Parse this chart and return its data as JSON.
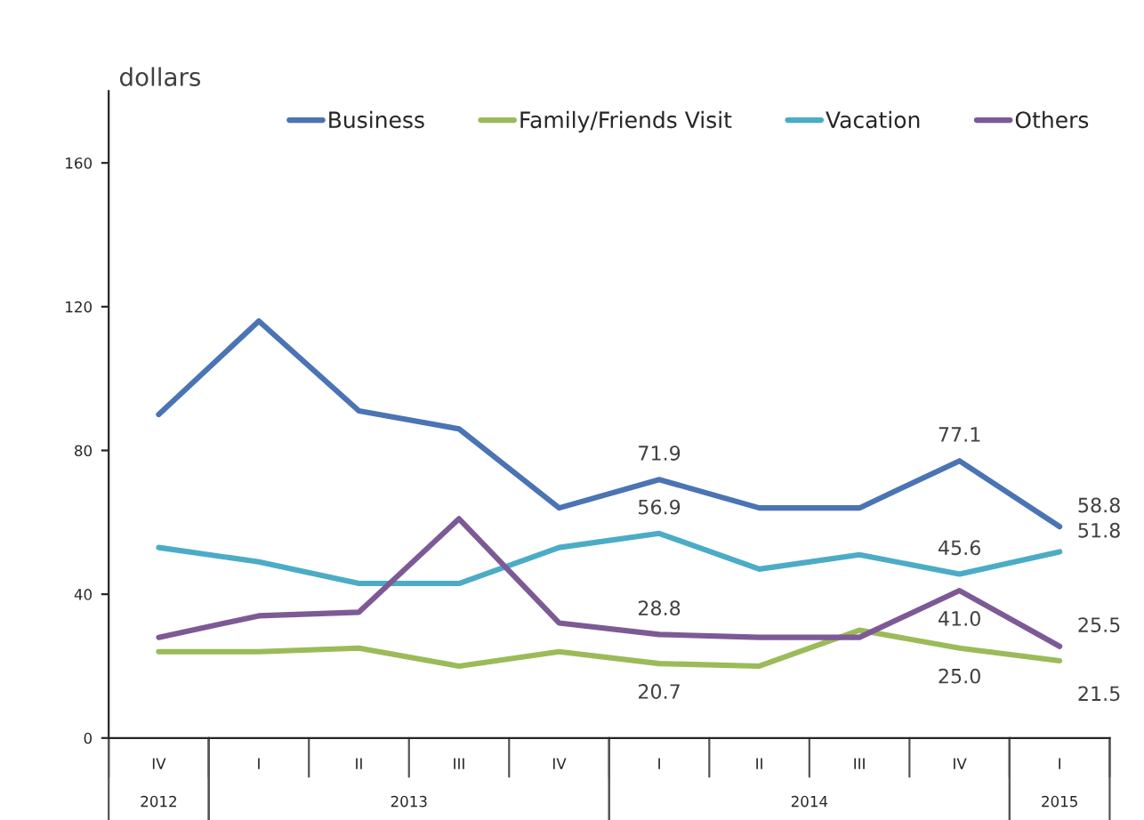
{
  "chart_data": {
    "type": "line",
    "ylabel": "dollars",
    "categories": [
      "IV",
      "I",
      "II",
      "III",
      "IV",
      "I",
      "II",
      "III",
      "IV",
      "I"
    ],
    "series": [
      {
        "name": "Business",
        "color": "#4a74b4",
        "values": [
          90,
          116,
          91,
          86,
          64,
          71.9,
          64,
          64,
          77.1,
          58.8
        ],
        "value_labels": [
          null,
          null,
          null,
          null,
          null,
          "71.9",
          null,
          null,
          "77.1",
          "58.8"
        ]
      },
      {
        "name": "Family/Friends Visit",
        "color": "#9bbb59",
        "values": [
          24,
          24,
          25,
          20,
          24,
          20.7,
          20,
          30,
          25.0,
          21.5
        ],
        "value_labels": [
          null,
          null,
          null,
          null,
          null,
          "20.7",
          null,
          null,
          "25.0",
          "21.5"
        ]
      },
      {
        "name": "Vacation",
        "color": "#4bacc6",
        "values": [
          53,
          49,
          43,
          43,
          53,
          56.9,
          47,
          51,
          45.6,
          51.8
        ],
        "value_labels": [
          null,
          null,
          null,
          null,
          null,
          "56.9",
          null,
          null,
          "45.6",
          "51.8"
        ]
      },
      {
        "name": "Others",
        "color": "#7d5a96",
        "values": [
          28,
          34,
          35,
          61,
          32,
          28.8,
          28,
          28,
          41.0,
          25.5
        ],
        "value_labels": [
          null,
          null,
          null,
          null,
          null,
          "28.8",
          null,
          null,
          "41.0",
          "25.5"
        ]
      }
    ],
    "ylim": [
      0,
      180
    ],
    "yticks": [
      0,
      40,
      80,
      120,
      160
    ],
    "annotations": [
      "2012",
      "2013",
      "2014",
      "2015"
    ],
    "grid": false,
    "legend": "top",
    "marker": "none",
    "line_style": "solid"
  }
}
